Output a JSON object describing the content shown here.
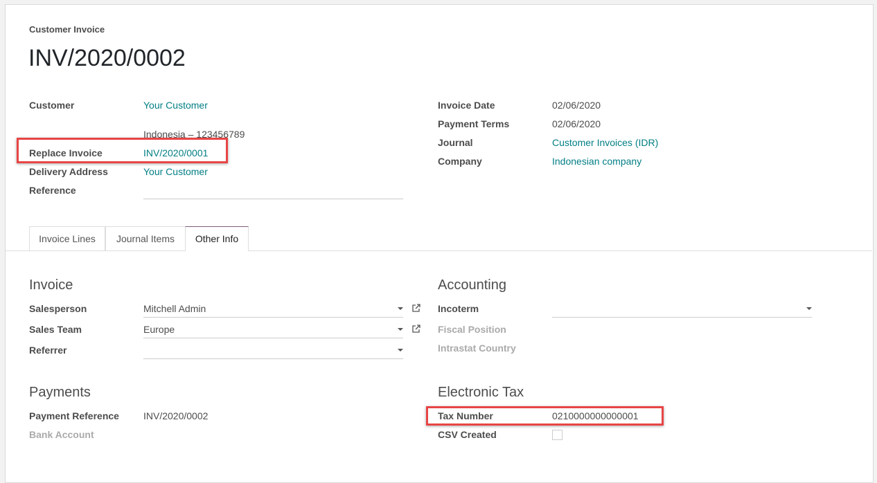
{
  "header": {
    "subtitle": "Customer Invoice",
    "title": "INV/2020/0002"
  },
  "left_fields": {
    "customer_label": "Customer",
    "customer_value": "Your Customer",
    "customer_address": "Indonesia – 123456789",
    "replace_invoice_label": "Replace Invoice",
    "replace_invoice_value": "INV/2020/0001",
    "delivery_address_label": "Delivery Address",
    "delivery_address_value": "Your Customer",
    "reference_label": "Reference",
    "reference_value": ""
  },
  "right_fields": {
    "invoice_date_label": "Invoice Date",
    "invoice_date_value": "02/06/2020",
    "payment_terms_label": "Payment Terms",
    "payment_terms_value": "02/06/2020",
    "journal_label": "Journal",
    "journal_value": "Customer Invoices (IDR)",
    "company_label": "Company",
    "company_value": "Indonesian company"
  },
  "tabs": [
    {
      "label": "Invoice Lines"
    },
    {
      "label": "Journal Items"
    },
    {
      "label": "Other Info",
      "active": true
    }
  ],
  "invoice_section": {
    "title": "Invoice",
    "salesperson_label": "Salesperson",
    "salesperson_value": "Mitchell Admin",
    "sales_team_label": "Sales Team",
    "sales_team_value": "Europe",
    "referrer_label": "Referrer",
    "referrer_value": ""
  },
  "accounting_section": {
    "title": "Accounting",
    "incoterm_label": "Incoterm",
    "incoterm_value": "",
    "fiscal_position_label": "Fiscal Position",
    "intrastat_country_label": "Intrastat Country"
  },
  "payments_section": {
    "title": "Payments",
    "payment_reference_label": "Payment Reference",
    "payment_reference_value": "INV/2020/0002",
    "bank_account_label": "Bank Account"
  },
  "electronic_tax_section": {
    "title": "Electronic Tax",
    "tax_number_label": "Tax Number",
    "tax_number_value": "0210000000000001",
    "csv_created_label": "CSV Created",
    "csv_created_checked": false
  },
  "colors": {
    "link": "#017e84",
    "highlight": "#e84545",
    "active_tab_border": "#7c5b75"
  }
}
